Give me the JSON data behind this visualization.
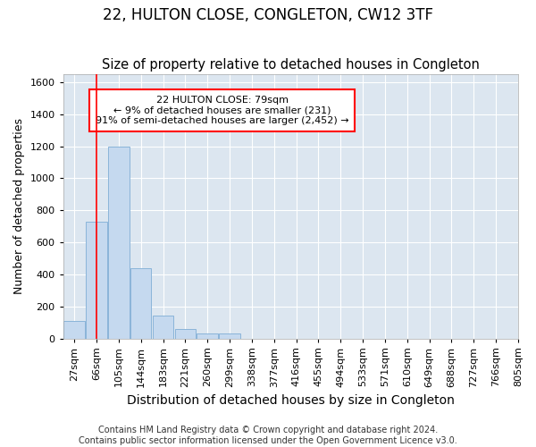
{
  "title": "22, HULTON CLOSE, CONGLETON, CW12 3TF",
  "subtitle": "Size of property relative to detached houses in Congleton",
  "xlabel": "Distribution of detached houses by size in Congleton",
  "ylabel": "Number of detached properties",
  "footer_line1": "Contains HM Land Registry data © Crown copyright and database right 2024.",
  "footer_line2": "Contains public sector information licensed under the Open Government Licence v3.0.",
  "bins": [
    "27sqm",
    "66sqm",
    "105sqm",
    "144sqm",
    "183sqm",
    "221sqm",
    "260sqm",
    "299sqm",
    "338sqm",
    "377sqm",
    "416sqm",
    "455sqm",
    "494sqm",
    "533sqm",
    "571sqm",
    "610sqm",
    "649sqm",
    "688sqm",
    "727sqm",
    "766sqm",
    "805sqm"
  ],
  "bar_values": [
    110,
    730,
    1200,
    440,
    145,
    60,
    30,
    30,
    0,
    0,
    0,
    0,
    0,
    0,
    0,
    0,
    0,
    0,
    0,
    0
  ],
  "bar_color": "#c5d9ef",
  "bar_edge_color": "#8ab4d9",
  "ylim": [
    0,
    1650
  ],
  "yticks": [
    0,
    200,
    400,
    600,
    800,
    1000,
    1200,
    1400,
    1600
  ],
  "vline_x": 1.0,
  "annotation_title": "22 HULTON CLOSE: 79sqm",
  "annotation_line1": "← 9% of detached houses are smaller (231)",
  "annotation_line2": "91% of semi-detached houses are larger (2,452) →",
  "bg_color": "#ffffff",
  "plot_bg_color": "#dce6f0",
  "grid_color": "#ffffff",
  "title_fontsize": 12,
  "subtitle_fontsize": 10.5,
  "xlabel_fontsize": 10,
  "tick_fontsize": 8,
  "ylabel_fontsize": 9,
  "footer_fontsize": 7
}
